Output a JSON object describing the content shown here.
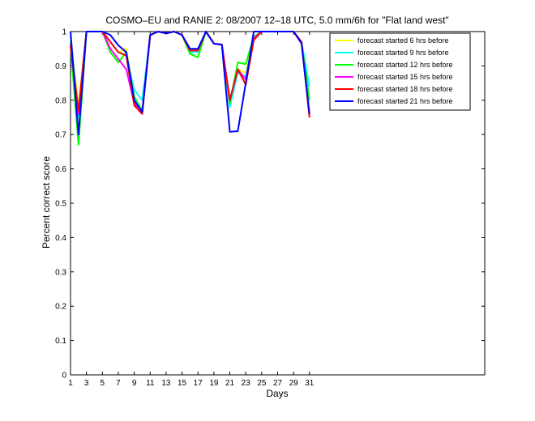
{
  "chart_data": {
    "type": "line",
    "title": "COSMO–EU and RANIE 2: 08/2007 12–18 UTC, 5.0 mm/6h for \"Flat land west\"",
    "xlabel": "Days",
    "ylabel": "Percent correct score",
    "xlim": [
      1,
      53
    ],
    "ylim": [
      0,
      1
    ],
    "xticks": [
      1,
      3,
      5,
      7,
      9,
      11,
      13,
      15,
      17,
      19,
      21,
      23,
      25,
      27,
      29,
      31
    ],
    "yticks": [
      0,
      0.1,
      0.2,
      0.3,
      0.4,
      0.5,
      0.6,
      0.7,
      0.8,
      0.9,
      1
    ],
    "ytick_labels": [
      "0",
      "0.1",
      "0.2",
      "0.3",
      "0.4",
      "0.5",
      "0.6",
      "0.7",
      "0.8",
      "0.9",
      "1"
    ],
    "legend_position": "top-right",
    "x": [
      1,
      2,
      3,
      4,
      5,
      6,
      7,
      8,
      9,
      10,
      11,
      12,
      13,
      14,
      15,
      16,
      17,
      18,
      19,
      20,
      21,
      22,
      23,
      24,
      25,
      26,
      27,
      28,
      29,
      30,
      31
    ],
    "series": [
      {
        "name": "forecast started  6 hrs before",
        "color": "#ffff00",
        "values": [
          0.99,
          0.78,
          1.0,
          1.0,
          1.0,
          0.97,
          0.94,
          0.95,
          0.8,
          0.77,
          0.99,
          1.0,
          0.995,
          1.0,
          0.99,
          0.945,
          0.945,
          1.0,
          0.965,
          0.962,
          0.79,
          0.89,
          0.88,
          0.98,
          1.0,
          1.0,
          1.0,
          1.0,
          1.0,
          0.97,
          0.76
        ]
      },
      {
        "name": "forecast started  9 hrs before",
        "color": "#00ffff",
        "values": [
          0.99,
          0.75,
          1.0,
          1.0,
          1.0,
          0.97,
          0.94,
          0.93,
          0.83,
          0.8,
          0.99,
          1.0,
          0.995,
          1.0,
          0.99,
          0.94,
          0.94,
          1.0,
          0.965,
          0.962,
          0.78,
          0.88,
          0.87,
          0.98,
          1.0,
          1.0,
          1.0,
          1.0,
          1.0,
          0.97,
          0.84
        ]
      },
      {
        "name": "forecast started 12 hrs before",
        "color": "#00ff00",
        "values": [
          0.96,
          0.67,
          1.0,
          1.0,
          1.0,
          0.94,
          0.91,
          0.94,
          0.81,
          0.77,
          0.99,
          1.0,
          0.995,
          1.0,
          0.99,
          0.935,
          0.925,
          1.0,
          0.965,
          0.962,
          0.79,
          0.91,
          0.905,
          0.985,
          1.0,
          1.0,
          1.0,
          1.0,
          1.0,
          0.97,
          0.8
        ]
      },
      {
        "name": "forecast started 15 hrs before",
        "color": "#ff00ff",
        "values": [
          0.96,
          0.76,
          1.0,
          1.0,
          1.0,
          0.95,
          0.92,
          0.89,
          0.79,
          0.77,
          0.99,
          1.0,
          0.995,
          1.0,
          0.99,
          0.945,
          0.945,
          1.0,
          0.965,
          0.962,
          0.8,
          0.89,
          0.86,
          0.98,
          1.0,
          1.0,
          1.0,
          1.0,
          1.0,
          0.97,
          0.75
        ]
      },
      {
        "name": "forecast started 18 hrs before",
        "color": "#ff0000",
        "values": [
          0.96,
          0.77,
          1.0,
          1.0,
          1.0,
          0.97,
          0.94,
          0.93,
          0.785,
          0.76,
          0.99,
          1.0,
          0.995,
          1.0,
          0.99,
          0.945,
          0.945,
          1.0,
          0.965,
          0.962,
          0.8,
          0.89,
          0.845,
          0.975,
          1.0,
          1.0,
          1.0,
          1.0,
          1.0,
          0.97,
          0.75
        ]
      },
      {
        "name": "forecast started 21 hrs before",
        "color": "#0000ff",
        "values": [
          1.0,
          0.7,
          1.0,
          1.0,
          1.0,
          0.99,
          0.96,
          0.94,
          0.8,
          0.765,
          0.99,
          1.0,
          0.995,
          1.0,
          0.99,
          0.95,
          0.95,
          1.0,
          0.965,
          0.962,
          0.708,
          0.71,
          0.85,
          1.0,
          1.0,
          1.0,
          1.0,
          1.0,
          1.0,
          0.965,
          0.76
        ]
      }
    ]
  }
}
